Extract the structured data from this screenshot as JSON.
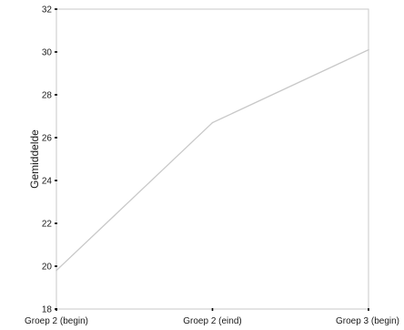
{
  "chart_data": {
    "type": "line",
    "categories": [
      "Groep 2 (begin)",
      "Groep 2 (eind)",
      "Groep 3 (begin)"
    ],
    "series": [
      {
        "values": [
          19.8,
          26.7,
          30.1
        ]
      }
    ],
    "xlabel": "",
    "ylabel": "Gemiddelde",
    "ylim": [
      18,
      32
    ],
    "yticks": [
      18,
      20,
      22,
      24,
      26,
      28,
      30,
      32
    ],
    "grid": false,
    "line_color": "#c8c8c8",
    "frame_color": "#c8c8c8",
    "tick_color": "#000000"
  }
}
